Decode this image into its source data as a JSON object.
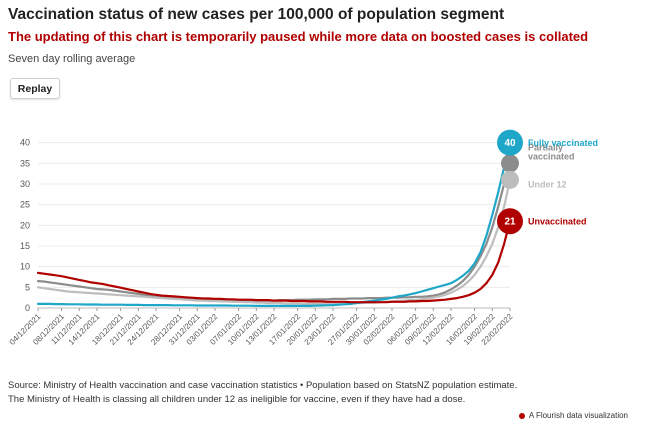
{
  "header": {
    "title": "Vaccination status of new cases per 100,000 of population segment",
    "subtitle": "The updating of this chart is temporarily paused while more data on boosted cases is collated",
    "note": "Seven day rolling average"
  },
  "controls": {
    "replay_label": "Replay"
  },
  "footer": {
    "source": "Source: Ministry of Health vaccination and case vaccination statistics • Population based on StatsNZ population estimate.",
    "disclaimer": "The Ministry of Health is classing all children under 12 as ineligible for vaccine, even if they have had a dose.",
    "credit": "A Flourish data visualization"
  },
  "colors": {
    "accent": "#b00000"
  },
  "chart_data": {
    "type": "line",
    "title": "Vaccination status of new cases per 100,000 of population segment",
    "ylim": [
      0,
      45
    ],
    "yticks": [
      0,
      5,
      10,
      15,
      20,
      25,
      30,
      35,
      40
    ],
    "grid": true,
    "x": [
      "04/12/2021",
      "05/12/2021",
      "06/12/2021",
      "07/12/2021",
      "08/12/2021",
      "09/12/2021",
      "10/12/2021",
      "11/12/2021",
      "12/12/2021",
      "13/12/2021",
      "14/12/2021",
      "15/12/2021",
      "16/12/2021",
      "17/12/2021",
      "18/12/2021",
      "19/12/2021",
      "20/12/2021",
      "21/12/2021",
      "22/12/2021",
      "23/12/2021",
      "24/12/2021",
      "25/12/2021",
      "26/12/2021",
      "27/12/2021",
      "28/12/2021",
      "29/12/2021",
      "30/12/2021",
      "31/12/2021",
      "01/01/2022",
      "02/01/2022",
      "03/01/2022",
      "04/01/2022",
      "05/01/2022",
      "06/01/2022",
      "07/01/2022",
      "08/01/2022",
      "09/01/2022",
      "10/01/2022",
      "11/01/2022",
      "12/01/2022",
      "13/01/2022",
      "14/01/2022",
      "15/01/2022",
      "16/01/2022",
      "17/01/2022",
      "18/01/2022",
      "19/01/2022",
      "20/01/2022",
      "21/01/2022",
      "22/01/2022",
      "23/01/2022",
      "24/01/2022",
      "25/01/2022",
      "26/01/2022",
      "27/01/2022",
      "28/01/2022",
      "29/01/2022",
      "30/01/2022",
      "31/01/2022",
      "01/02/2022",
      "02/02/2022",
      "03/02/2022",
      "04/02/2022",
      "05/02/2022",
      "06/02/2022",
      "07/02/2022",
      "08/02/2022",
      "09/02/2022",
      "10/02/2022",
      "11/02/2022",
      "12/02/2022",
      "13/02/2022",
      "14/02/2022",
      "15/02/2022",
      "16/02/2022",
      "17/02/2022",
      "18/02/2022",
      "19/02/2022",
      "20/02/2022",
      "21/02/2022",
      "22/02/2022"
    ],
    "tick_labels": [
      "04/12/2021",
      "08/12/2021",
      "11/12/2021",
      "14/12/2021",
      "18/12/2021",
      "21/12/2021",
      "24/12/2021",
      "28/12/2021",
      "31/12/2021",
      "03/01/2022",
      "07/01/2022",
      "10/01/2022",
      "13/01/2022",
      "17/01/2022",
      "20/01/2022",
      "23/01/2022",
      "27/01/2022",
      "30/01/2022",
      "02/02/2022",
      "06/02/2022",
      "09/02/2022",
      "12/02/2022",
      "16/02/2022",
      "19/02/2022",
      "22/02/2022"
    ],
    "series": [
      {
        "name": "Partially vaccinated",
        "color": "#8c8c8c",
        "values": [
          6.5,
          6.4,
          6.2,
          6.0,
          5.8,
          5.6,
          5.4,
          5.2,
          5.0,
          4.8,
          4.6,
          4.5,
          4.4,
          4.2,
          4.0,
          3.8,
          3.6,
          3.4,
          3.2,
          3.0,
          2.8,
          2.6,
          2.5,
          2.4,
          2.4,
          2.3,
          2.2,
          2.2,
          2.1,
          2.1,
          2.0,
          2.0,
          2.0,
          1.9,
          1.9,
          1.9,
          1.8,
          1.8,
          1.8,
          1.8,
          1.8,
          1.9,
          1.9,
          1.9,
          2.0,
          2.0,
          2.0,
          2.1,
          2.1,
          2.1,
          2.2,
          2.2,
          2.2,
          2.3,
          2.3,
          2.3,
          2.4,
          2.4,
          2.4,
          2.5,
          2.5,
          2.5,
          2.6,
          2.6,
          2.7,
          2.7,
          2.8,
          3.0,
          3.3,
          3.8,
          4.5,
          5.4,
          6.5,
          8.0,
          10.0,
          12.5,
          15.5,
          19.5,
          24.5,
          30.0,
          35.0
        ]
      },
      {
        "name": "Under 12",
        "color": "#bdbdbd",
        "values": [
          5.0,
          4.8,
          4.6,
          4.4,
          4.2,
          4.0,
          3.9,
          3.8,
          3.7,
          3.6,
          3.5,
          3.4,
          3.3,
          3.2,
          3.1,
          3.0,
          2.9,
          2.8,
          2.7,
          2.6,
          2.5,
          2.4,
          2.3,
          2.2,
          2.1,
          2.0,
          1.9,
          1.8,
          1.8,
          1.7,
          1.7,
          1.6,
          1.6,
          1.5,
          1.5,
          1.4,
          1.4,
          1.3,
          1.3,
          1.2,
          1.2,
          1.2,
          1.1,
          1.1,
          1.1,
          1.0,
          1.0,
          1.0,
          1.0,
          1.0,
          1.0,
          1.1,
          1.1,
          1.1,
          1.2,
          1.2,
          1.3,
          1.3,
          1.4,
          1.5,
          1.6,
          1.7,
          1.8,
          1.9,
          2.0,
          2.1,
          2.3,
          2.5,
          2.8,
          3.2,
          3.7,
          4.4,
          5.3,
          6.5,
          8.0,
          10.0,
          12.5,
          15.5,
          19.5,
          24.5,
          31.0
        ]
      },
      {
        "name": "Fully vaccinated",
        "color": "#1ea7c9",
        "values": [
          1.0,
          1.0,
          1.0,
          0.95,
          0.95,
          0.9,
          0.9,
          0.9,
          0.85,
          0.85,
          0.85,
          0.8,
          0.8,
          0.8,
          0.8,
          0.75,
          0.75,
          0.75,
          0.7,
          0.7,
          0.7,
          0.7,
          0.7,
          0.65,
          0.65,
          0.65,
          0.65,
          0.6,
          0.6,
          0.6,
          0.6,
          0.6,
          0.6,
          0.55,
          0.55,
          0.55,
          0.55,
          0.5,
          0.5,
          0.5,
          0.5,
          0.5,
          0.5,
          0.5,
          0.5,
          0.5,
          0.5,
          0.55,
          0.6,
          0.65,
          0.7,
          0.8,
          0.9,
          1.0,
          1.2,
          1.4,
          1.6,
          1.8,
          2.0,
          2.2,
          2.5,
          2.8,
          3.0,
          3.3,
          3.6,
          4.0,
          4.4,
          4.8,
          5.2,
          5.6,
          6.0,
          6.8,
          7.8,
          9.0,
          10.8,
          13.5,
          17.5,
          22.5,
          28.0,
          34.0,
          40.0
        ]
      },
      {
        "name": "Unvaccinated",
        "color": "#b00000",
        "values": [
          8.5,
          8.3,
          8.1,
          7.9,
          7.7,
          7.4,
          7.1,
          6.8,
          6.5,
          6.2,
          6.0,
          5.8,
          5.5,
          5.2,
          4.9,
          4.6,
          4.3,
          4.0,
          3.7,
          3.4,
          3.2,
          3.0,
          2.9,
          2.8,
          2.7,
          2.6,
          2.5,
          2.4,
          2.3,
          2.3,
          2.2,
          2.2,
          2.1,
          2.1,
          2.0,
          2.0,
          2.0,
          1.9,
          1.9,
          1.9,
          1.8,
          1.8,
          1.8,
          1.7,
          1.7,
          1.7,
          1.6,
          1.6,
          1.6,
          1.5,
          1.5,
          1.5,
          1.5,
          1.4,
          1.4,
          1.4,
          1.4,
          1.4,
          1.4,
          1.4,
          1.5,
          1.5,
          1.5,
          1.6,
          1.6,
          1.7,
          1.7,
          1.8,
          1.9,
          2.0,
          2.2,
          2.4,
          2.7,
          3.1,
          3.7,
          4.6,
          6.0,
          8.0,
          11.0,
          15.5,
          21.0
        ]
      }
    ],
    "end_labels": [
      {
        "series": "Partially vaccinated",
        "text": "Partially\nvaccinated"
      },
      {
        "series": "Fully vaccinated",
        "text": "Fully vaccinated",
        "bubble": "40"
      },
      {
        "series": "Under 12",
        "text": "Under 12"
      },
      {
        "series": "Unvaccinated",
        "text": "Unvaccinated",
        "bubble": "21"
      }
    ]
  }
}
